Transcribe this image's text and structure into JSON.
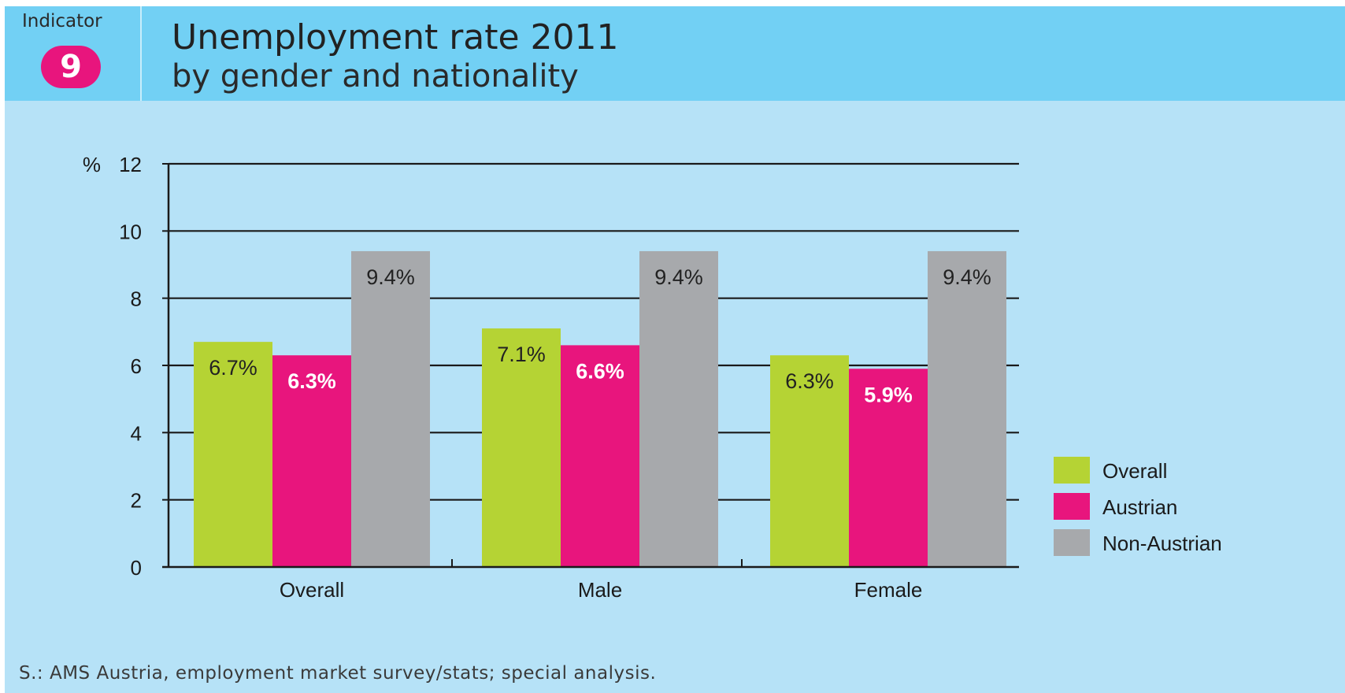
{
  "header": {
    "indicator_label": "Indicator",
    "indicator_number": "9",
    "title": "Unemployment rate 2011",
    "subtitle": "by gender and nationality"
  },
  "source": "S.: AMS Austria, employment market survey/stats; special analysis.",
  "colors": {
    "header_bg": "#72d0f4",
    "panel_bg": "#b6e2f7",
    "badge": "#e8157d"
  },
  "chart_data": {
    "type": "bar",
    "categories": [
      "Overall",
      "Male",
      "Female"
    ],
    "series": [
      {
        "name": "Overall",
        "values": [
          6.7,
          7.1,
          6.3
        ],
        "labels": [
          "6.7%",
          "7.1%",
          "6.3%"
        ],
        "color": "#b5d334",
        "label_color": "#222222"
      },
      {
        "name": "Austrian",
        "values": [
          6.3,
          6.6,
          5.9
        ],
        "labels": [
          "6.3%",
          "6.6%",
          "5.9%"
        ],
        "color": "#e8157d",
        "label_color": "#ffffff"
      },
      {
        "name": "Non-Austrian",
        "values": [
          9.4,
          9.4,
          9.4
        ],
        "labels": [
          "9.4%",
          "9.4%",
          "9.4%"
        ],
        "color": "#a7a9ac",
        "label_color": "#222222"
      }
    ],
    "ylabel": "%",
    "ylim": [
      0,
      12
    ],
    "yticks": [
      0,
      2,
      4,
      6,
      8,
      10,
      12
    ],
    "grid": true,
    "legend": "right"
  }
}
